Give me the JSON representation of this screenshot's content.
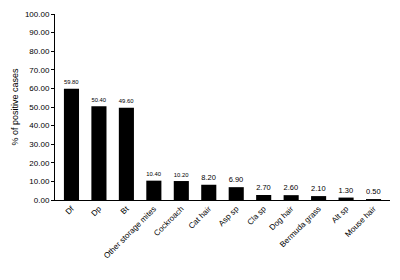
{
  "chart_data": {
    "type": "bar",
    "ylabel": "% of positive cases",
    "categories": [
      "Df",
      "Dp",
      "Bt",
      "Other storage mites",
      "Cockroach",
      "Cat hair",
      "Asp sp",
      "Cla sp",
      "Dog hair",
      "Bermuda grass",
      "Alt sp",
      "Mouse hair"
    ],
    "values": [
      59.8,
      50.4,
      49.6,
      10.4,
      10.2,
      8.2,
      6.9,
      2.7,
      2.6,
      2.1,
      1.3,
      0.5
    ],
    "value_labels": [
      "59.80",
      "50.40",
      "49.60",
      "10.40",
      "10.20",
      "8.20",
      "6.90",
      "2.70",
      "2.60",
      "2.10",
      "1.30",
      "0.50"
    ],
    "color": "#000000",
    "data_labels": true,
    "ylim": [
      0,
      100
    ],
    "yticks": [
      {
        "value": 0,
        "label": "0.00"
      },
      {
        "value": 10,
        "label": "10.00"
      },
      {
        "value": 20,
        "label": "20.00"
      },
      {
        "value": 30,
        "label": "30.00"
      },
      {
        "value": 40,
        "label": "40.00"
      },
      {
        "value": 50,
        "label": "50.00"
      },
      {
        "value": 60,
        "label": "60.00"
      },
      {
        "value": 70,
        "label": "70.00"
      },
      {
        "value": 80,
        "label": "80.00"
      },
      {
        "value": 90,
        "label": "90.00"
      },
      {
        "value": 100,
        "label": "100.00"
      }
    ],
    "grid": false
  }
}
